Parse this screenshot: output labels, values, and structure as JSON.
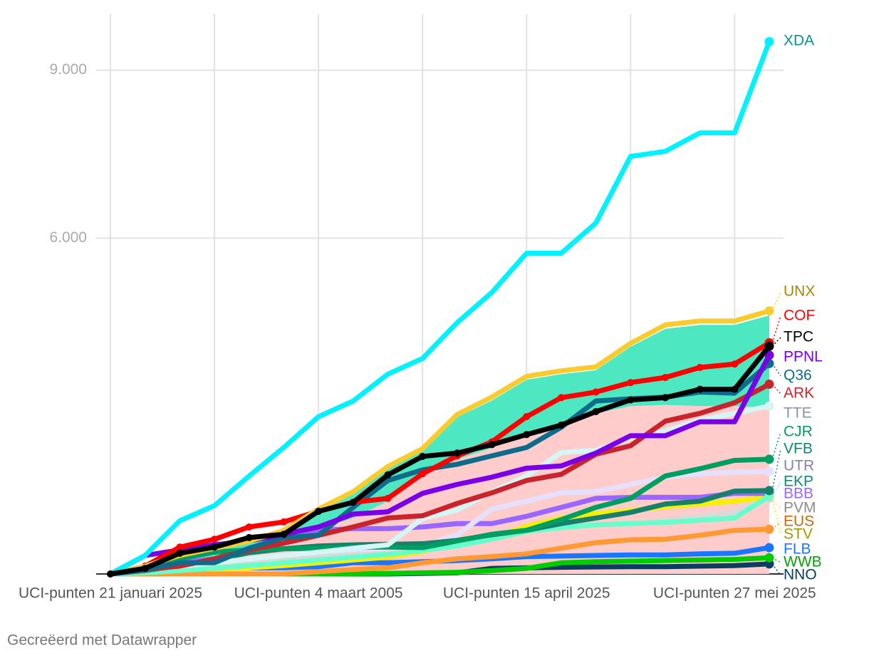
{
  "chart_data": {
    "type": "line",
    "categories": [
      "UCI-punten 21 januari 2025",
      null,
      null,
      null,
      null,
      null,
      "UCI-punten 4 maart 2005",
      null,
      null,
      null,
      null,
      null,
      "UCI-punten 15 april 2025",
      null,
      null,
      null,
      null,
      null,
      "UCI-punten 27 mei 2025",
      null
    ],
    "ylim": [
      0,
      10000
    ],
    "yticks": [
      {
        "value": 6000,
        "label": "6.000"
      },
      {
        "value": 9000,
        "label": "9.000"
      }
    ],
    "grid": true,
    "footer": "Gecreëerd met Datawrapper",
    "areas": [
      {
        "color": "#4de8c2",
        "values": [
          0,
          100,
          300,
          430,
          560,
          750,
          1120,
          1430,
          1880,
          2200,
          2800,
          3100,
          3470,
          3570,
          3640,
          4060,
          4380,
          4450,
          4450,
          4620
        ]
      },
      {
        "color": "#ffcccc",
        "values": [
          0,
          80,
          200,
          300,
          420,
          600,
          800,
          1000,
          1300,
          1750,
          2050,
          2250,
          2500,
          2700,
          2870,
          3000,
          3020,
          3000,
          3000,
          2970
        ]
      }
    ],
    "series": [
      {
        "name": "XDA",
        "color": "#00f2ff",
        "label_color": "#0a8f8f",
        "values": [
          0,
          330,
          950,
          1220,
          1750,
          2260,
          2810,
          3090,
          3570,
          3850,
          4490,
          5030,
          5730,
          5730,
          6270,
          7460,
          7550,
          7880,
          7880,
          9510
        ]
      },
      {
        "name": "UNX",
        "color": "#f9cb2e",
        "label_color": "#a88600",
        "values": [
          0,
          140,
          330,
          460,
          585,
          780,
          1160,
          1470,
          1920,
          2240,
          2850,
          3160,
          3530,
          3630,
          3700,
          4120,
          4450,
          4520,
          4520,
          4700
        ]
      },
      {
        "name": "COF",
        "color": "#ff0000",
        "label_color": "#ff0000",
        "markers": true,
        "values": [
          0,
          140,
          480,
          620,
          840,
          930,
          1120,
          1280,
          1350,
          1790,
          2110,
          2360,
          2810,
          3150,
          3250,
          3420,
          3510,
          3690,
          3750,
          4130
        ]
      },
      {
        "name": "TPC",
        "color": "#000000",
        "label_color": "#000000",
        "markers": true,
        "values": [
          0,
          100,
          370,
          480,
          650,
          710,
          1120,
          1280,
          1770,
          2100,
          2160,
          2310,
          2490,
          2660,
          2900,
          3110,
          3150,
          3300,
          3300,
          4070
        ]
      },
      {
        "name": "PPNL",
        "color": "#7a00e6",
        "label_color": "#7a00e6",
        "values": [
          0,
          330,
          430,
          520,
          590,
          710,
          840,
          1070,
          1110,
          1440,
          1600,
          1730,
          1890,
          1930,
          2160,
          2470,
          2470,
          2720,
          2720,
          3910
        ]
      },
      {
        "name": "Q36",
        "color": "#0e6b8a",
        "label_color": "#0e6b8a",
        "values": [
          0,
          80,
          200,
          200,
          460,
          650,
          690,
          1190,
          1670,
          1860,
          1960,
          2110,
          2260,
          2620,
          3090,
          3130,
          3160,
          3250,
          3230,
          3760
        ]
      },
      {
        "name": "ARK",
        "color": "#c9242c",
        "label_color": "#d81e28",
        "values": [
          0,
          80,
          140,
          270,
          430,
          550,
          690,
          840,
          1000,
          1040,
          1260,
          1450,
          1670,
          1780,
          2140,
          2290,
          2730,
          2870,
          3060,
          3390
        ]
      },
      {
        "name": "TTE",
        "color": "#d6f6f6",
        "label_color": "#8a94a6",
        "values": [
          0,
          80,
          140,
          200,
          270,
          330,
          390,
          460,
          520,
          990,
          1140,
          1470,
          1750,
          2170,
          2210,
          2430,
          2550,
          2750,
          2870,
          3000
        ]
      },
      {
        "name": "CJR",
        "color": "#009e60",
        "label_color": "#009e60",
        "values": [
          0,
          110,
          270,
          390,
          430,
          450,
          460,
          480,
          480,
          470,
          590,
          710,
          780,
          970,
          1190,
          1350,
          1750,
          1880,
          2030,
          2050
        ]
      },
      {
        "name": "VFB",
        "color": "#17806d",
        "label_color": "#0b8a6a",
        "values": [
          0,
          60,
          150,
          250,
          380,
          450,
          500,
          520,
          530,
          540,
          600,
          700,
          780,
          900,
          1000,
          1100,
          1250,
          1300,
          1480,
          1490
        ]
      },
      {
        "name": "UTR",
        "color": "#e6e0ff",
        "label_color": "#8a80a8",
        "values": [
          0,
          80,
          140,
          200,
          270,
          330,
          390,
          430,
          460,
          500,
          700,
          1160,
          1300,
          1450,
          1470,
          1600,
          1730,
          1790,
          1820,
          1830
        ]
      },
      {
        "name": "EKP",
        "color": "#66ffcc",
        "label_color": "#128a70",
        "values": [
          0,
          20,
          60,
          100,
          150,
          200,
          250,
          300,
          350,
          420,
          500,
          620,
          760,
          830,
          880,
          900,
          920,
          960,
          1000,
          1390
        ]
      },
      {
        "name": "BBB",
        "color": "#9966ff",
        "label_color": "#9966ff",
        "values": [
          0,
          80,
          200,
          270,
          460,
          590,
          780,
          810,
          810,
          840,
          900,
          900,
          1030,
          1190,
          1350,
          1370,
          1370,
          1370,
          1440,
          1440
        ]
      },
      {
        "name": "PVM",
        "color": "#d9d9d9",
        "label_color": "#8c8c8c",
        "values": [
          0,
          30,
          80,
          120,
          180,
          240,
          300,
          360,
          420,
          480,
          560,
          640,
          760,
          820,
          870,
          900,
          960,
          1030,
          1110,
          1350
        ]
      },
      {
        "name": "EUS",
        "color": "#ff9933",
        "label_color": "#c76b00",
        "values": [
          0,
          0,
          0,
          0,
          0,
          0,
          40,
          80,
          110,
          200,
          270,
          310,
          360,
          460,
          560,
          610,
          620,
          690,
          780,
          800
        ]
      },
      {
        "name": "STV",
        "color": "#f4f000",
        "label_color": "#9a9a00",
        "values": [
          0,
          20,
          50,
          80,
          110,
          150,
          200,
          250,
          300,
          400,
          550,
          650,
          850,
          1000,
          1080,
          1130,
          1200,
          1250,
          1300,
          1380
        ]
      },
      {
        "name": "FLB",
        "color": "#1a75ff",
        "label_color": "#1a75ff",
        "values": [
          0,
          80,
          110,
          110,
          110,
          110,
          130,
          200,
          200,
          220,
          240,
          270,
          310,
          320,
          330,
          340,
          340,
          360,
          370,
          470
        ]
      },
      {
        "name": "WWB",
        "color": "#00cc00",
        "label_color": "#0a9a0a",
        "values": [
          0,
          0,
          0,
          0,
          0,
          0,
          0,
          5,
          10,
          20,
          30,
          60,
          100,
          200,
          220,
          230,
          240,
          250,
          260,
          290
        ]
      },
      {
        "name": "NNO",
        "color": "#0a3d62",
        "label_color": "#0a3d62",
        "values": [
          0,
          0,
          0,
          0,
          0,
          0,
          0,
          0,
          0,
          10,
          20,
          100,
          110,
          120,
          125,
          130,
          130,
          140,
          150,
          180
        ]
      }
    ]
  }
}
